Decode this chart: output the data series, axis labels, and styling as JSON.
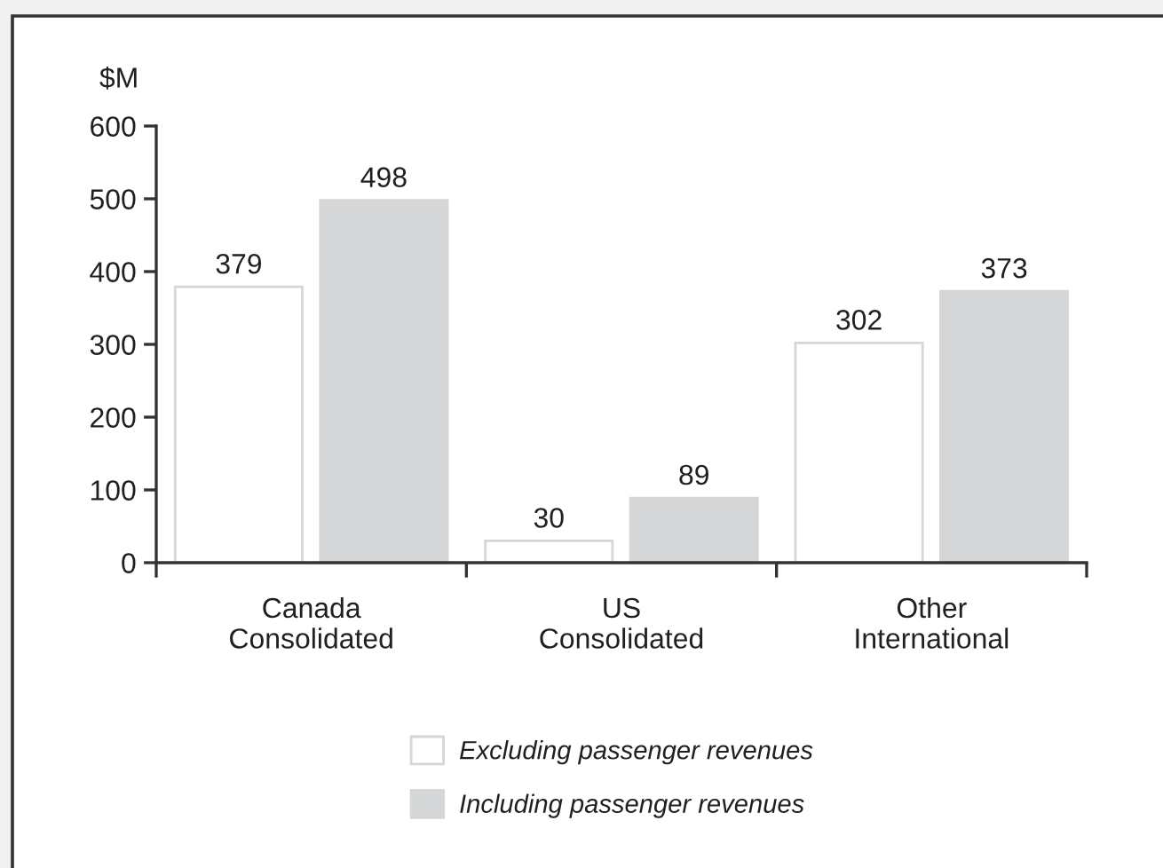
{
  "chart_data": {
    "type": "bar",
    "ylabel": "$M",
    "categories": [
      "Canada\nConsolidated",
      "US\nConsolidated",
      "Other\nInternational"
    ],
    "series": [
      {
        "name": "Excluding passenger revenues",
        "color": "#ffffff",
        "values": [
          379,
          30,
          302
        ]
      },
      {
        "name": "Including passenger revenues",
        "color": "#d5d6d8",
        "values": [
          498,
          89,
          373
        ]
      }
    ],
    "ylim": [
      0,
      600
    ],
    "yticks": [
      0,
      100,
      200,
      300,
      400,
      500,
      600
    ],
    "data_labels": true,
    "legend": "bottom",
    "grid": false
  }
}
